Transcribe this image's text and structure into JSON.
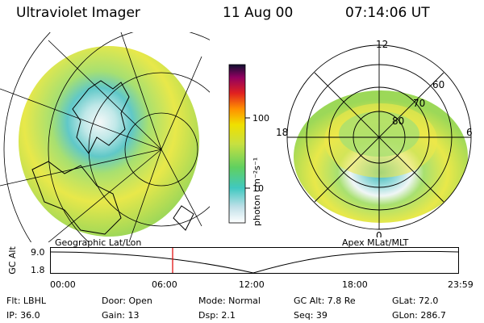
{
  "header": {
    "instrument": "Ultraviolet Imager",
    "date": "11 Aug 00",
    "time": "07:14:06 UT"
  },
  "colorbar": {
    "unit_label": "photon cm⁻²s⁻¹",
    "ticks": [
      "100",
      "10"
    ]
  },
  "polar_plot": {
    "mlt_labels": [
      "12",
      "18",
      "6",
      "0"
    ],
    "lat_labels": [
      "60",
      "70",
      "80"
    ]
  },
  "panels": {
    "left_label": "Geographic Lat/Lon",
    "right_label": "Apex MLat/MLT"
  },
  "altitude_plot": {
    "axis_label": "GC Alt",
    "y_ticks": [
      "9.0",
      "1.8"
    ],
    "x_ticks": [
      "00:00",
      "06:00",
      "12:00",
      "18:00",
      "23:59"
    ],
    "marker_time": "07:14"
  },
  "footer": {
    "row1": {
      "filter": "Flt: LBHL",
      "door": "Door: Open",
      "mode": "Mode: Normal",
      "gc_alt": "GC Alt: 7.8 Re",
      "glat": "GLat:  72.0"
    },
    "row2": {
      "ip": "IP: 36.0",
      "gain": "Gain: 13",
      "dsp": "Dsp:      2.1",
      "seq": "Seq: 39",
      "glon": "GLon: 286.7"
    }
  },
  "colors": {
    "marker": "#e00000",
    "emission_high": "#f0f0f0",
    "emission_mid": "#60c8c8",
    "emission_low": "#e8e840"
  }
}
